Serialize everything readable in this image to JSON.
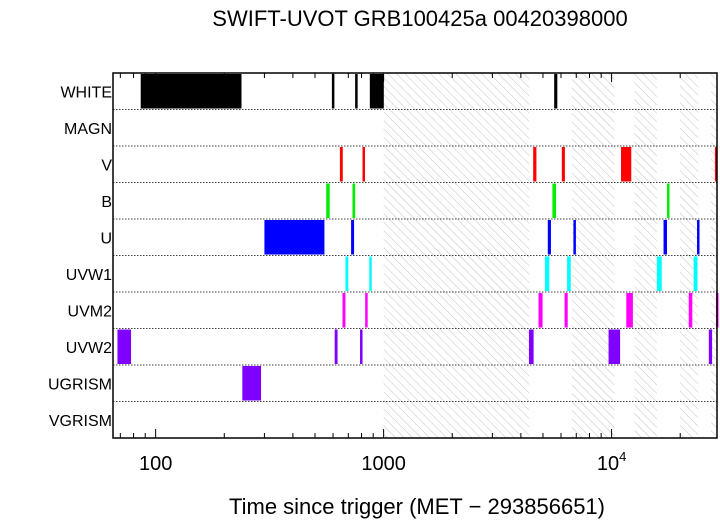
{
  "chart_data": {
    "type": "timeline",
    "title": "SWIFT-UVOT GRB100425a 00420398000",
    "xlabel": "Time since trigger (MET − 293856651)",
    "x_scale": "log",
    "xlim": [
      65,
      29000
    ],
    "x_ticks": [
      {
        "value": 100,
        "label": "100"
      },
      {
        "value": 1000,
        "label": "1000"
      },
      {
        "value": 10000,
        "label": "10",
        "exp": "4"
      }
    ],
    "filters": [
      "WHITE",
      "MAGN",
      "V",
      "B",
      "U",
      "UVW1",
      "UVM2",
      "UVW2",
      "UGRISM",
      "VGRISM"
    ],
    "colors": {
      "WHITE": "#000000",
      "V": "#ff0000",
      "B": "#00ee00",
      "U": "#0000ff",
      "UVW1": "#00ffff",
      "UVM2": "#ff00ff",
      "UVW2": "#8000ff",
      "UGRISM": "#8000ff"
    },
    "gaps": [
      [
        1000,
        4350
      ],
      [
        6700,
        10300
      ],
      [
        12600,
        15800
      ],
      [
        19900,
        24000
      ],
      [
        27300,
        29000
      ]
    ],
    "exposures": {
      "WHITE": [
        [
          86,
          238
        ],
        [
          593,
          608
        ],
        [
          750,
          762
        ],
        [
          870,
          1002
        ],
        [
          5600,
          5780
        ]
      ],
      "V": [
        [
          643,
          662
        ],
        [
          808,
          825
        ],
        [
          4530,
          4680
        ],
        [
          6050,
          6240
        ],
        [
          11000,
          12200
        ],
        [
          28400,
          29000
        ]
      ],
      "B": [
        [
          560,
          580
        ],
        [
          730,
          750
        ],
        [
          5500,
          5710
        ],
        [
          17500,
          17900
        ]
      ],
      "U": [
        [
          300,
          550
        ],
        [
          720,
          742
        ],
        [
          5250,
          5420
        ],
        [
          6800,
          6960
        ],
        [
          16900,
          17500
        ],
        [
          23700,
          24100
        ]
      ],
      "UVW1": [
        [
          680,
          700
        ],
        [
          865,
          882
        ],
        [
          5100,
          5330
        ],
        [
          6380,
          6620
        ],
        [
          15800,
          16600
        ],
        [
          22900,
          23800
        ]
      ],
      "UVM2": [
        [
          660,
          680
        ],
        [
          830,
          848
        ],
        [
          4780,
          4980
        ],
        [
          6220,
          6420
        ],
        [
          11600,
          12400
        ],
        [
          21800,
          22600
        ],
        [
          28700,
          29000
        ]
      ],
      "UVW2": [
        [
          68,
          78
        ],
        [
          610,
          628
        ],
        [
          788,
          805
        ],
        [
          4340,
          4550
        ],
        [
          9700,
          10900
        ],
        [
          26700,
          27600
        ]
      ],
      "UGRISM": [
        [
          240,
          290
        ]
      ],
      "MAGN": [],
      "VGRISM": []
    }
  }
}
